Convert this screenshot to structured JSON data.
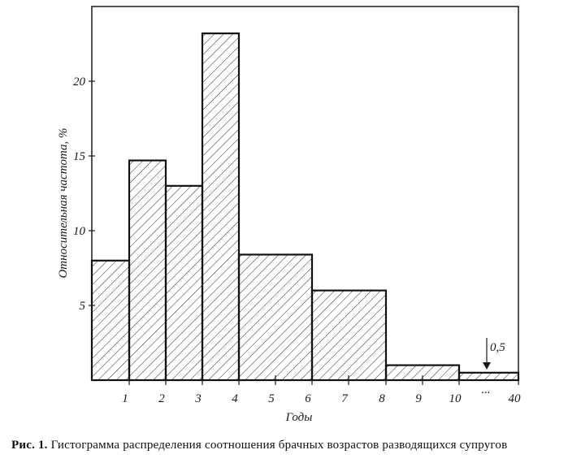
{
  "chart_data": {
    "type": "bar",
    "ylabel": "Относительная частота, %",
    "xlabel": "Годы",
    "ylim": [
      0,
      25
    ],
    "yticks": [
      "5",
      "10",
      "15",
      "20"
    ],
    "x_ticks": [
      "1",
      "2",
      "3",
      "4",
      "5",
      "6",
      "7",
      "8",
      "9",
      "10",
      "40"
    ],
    "bins": [
      {
        "from": 0,
        "to": 1,
        "value": 8
      },
      {
        "from": 1,
        "to": 2,
        "value": 14.7
      },
      {
        "from": 2,
        "to": 3,
        "value": 13
      },
      {
        "from": 3,
        "to": 4,
        "value": 23.2
      },
      {
        "from": 4,
        "to": 6,
        "value": 8.4
      },
      {
        "from": 6,
        "to": 8,
        "value": 6
      },
      {
        "from": 8,
        "to": 10,
        "value": 1
      },
      {
        "from": 10,
        "to": 40,
        "value": 0.5
      }
    ],
    "annotation": "0,5",
    "axis_break": "...",
    "hatch": "diagonal",
    "grid": false
  },
  "caption": {
    "prefix": "Рис. 1.",
    "text": " Гистограмма распределения соотношения брачных возрастов разводящихся супругов"
  }
}
